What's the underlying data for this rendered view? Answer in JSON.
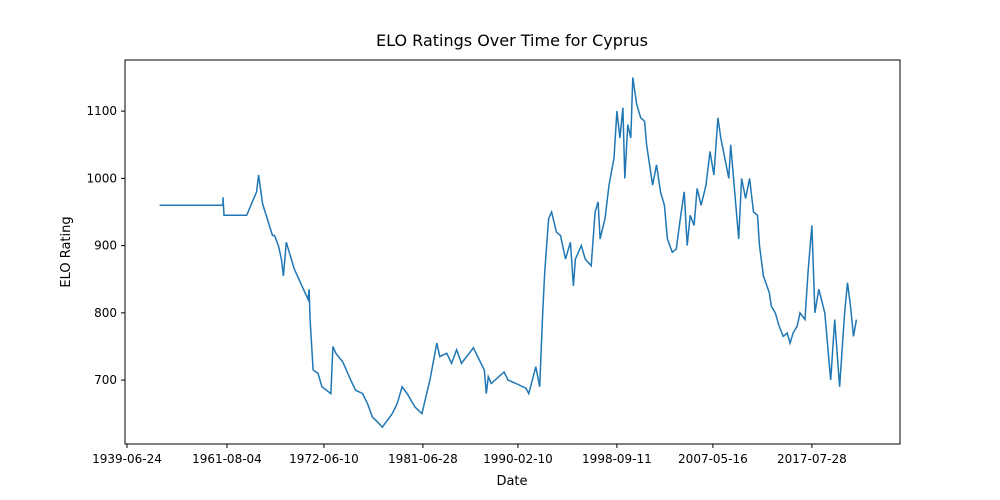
{
  "chart_data": {
    "type": "line",
    "title": "ELO Ratings Over Time for Cyprus",
    "x_label": "Date",
    "y_label": "ELO Rating",
    "x": [
      33,
      97,
      97,
      98,
      121,
      131,
      133,
      137,
      147,
      149,
      153,
      156,
      158,
      161,
      166,
      169,
      183,
      184,
      185,
      188,
      193,
      197,
      206,
      208,
      211,
      218,
      226,
      231,
      238,
      243,
      248,
      253,
      258,
      268,
      273,
      278,
      283,
      291,
      298,
      306,
      313,
      316,
      323,
      328,
      333,
      338,
      350,
      361,
      363,
      365,
      368,
      381,
      385,
      393,
      403,
      406,
      413,
      417,
      420,
      422,
      426,
      429,
      434,
      438,
      443,
      448,
      451,
      453,
      459,
      463,
      469,
      473,
      476,
      478,
      483,
      487,
      492,
      495,
      498,
      501,
      503,
      506,
      509,
      511,
      515,
      519,
      523,
      525,
      528,
      531,
      535,
      539,
      543,
      546,
      551,
      555,
      559,
      563,
      566,
      569,
      573,
      576,
      580,
      585,
      589,
      593,
      597,
      600,
      604,
      608,
      610,
      614,
      618,
      621,
      625,
      629,
      633,
      637,
      639,
      643,
      649,
      651,
      655,
      659,
      663,
      667,
      670,
      673,
      677,
      680,
      685,
      688,
      692,
      695,
      699,
      705,
      711,
      715,
      720,
      725,
      728,
      731,
      734,
      737
    ],
    "series": [
      {
        "name": "Cyprus",
        "color": "#1f77b4",
        "values": [
          960,
          960,
          972,
          945,
          945,
          980,
          1005,
          962,
          915,
          915,
          900,
          880,
          855,
          905,
          880,
          865,
          820,
          835,
          790,
          715,
          710,
          690,
          680,
          750,
          740,
          727,
          700,
          685,
          680,
          665,
          645,
          638,
          630,
          650,
          665,
          690,
          680,
          660,
          650,
          700,
          755,
          735,
          740,
          725,
          745,
          725,
          748,
          715,
          680,
          705,
          695,
          712,
          700,
          695,
          688,
          680,
          720,
          690,
          800,
          860,
          940,
          950,
          920,
          915,
          880,
          905,
          840,
          880,
          900,
          880,
          870,
          950,
          965,
          910,
          940,
          990,
          1030,
          1100,
          1060,
          1105,
          1000,
          1080,
          1060,
          1150,
          1110,
          1090,
          1085,
          1050,
          1020,
          990,
          1020,
          980,
          960,
          910,
          890,
          895,
          940,
          980,
          900,
          945,
          930,
          985,
          960,
          990,
          1040,
          1005,
          1090,
          1060,
          1030,
          1000,
          1050,
          980,
          910,
          1000,
          970,
          1000,
          950,
          945,
          900,
          855,
          830,
          810,
          800,
          780,
          765,
          770,
          755,
          770,
          780,
          800,
          790,
          860,
          930,
          800,
          835,
          800,
          700,
          790,
          690,
          800,
          845,
          810,
          765,
          790
        ]
      }
    ],
    "xlim": [
      -2,
      781
    ],
    "xticks": [
      {
        "value": 0,
        "label": "1939-06-24"
      },
      {
        "value": 101,
        "label": "1961-08-04"
      },
      {
        "value": 199,
        "label": "1972-06-10"
      },
      {
        "value": 299,
        "label": "1981-06-28"
      },
      {
        "value": 395,
        "label": "1990-02-10"
      },
      {
        "value": 495,
        "label": "1998-09-11"
      },
      {
        "value": 592,
        "label": "2007-05-16"
      },
      {
        "value": 692,
        "label": "2017-07-28"
      }
    ],
    "ylim": [
      605,
      1176
    ],
    "yticks": [
      700,
      800,
      900,
      1000,
      1100
    ],
    "grid": false
  }
}
